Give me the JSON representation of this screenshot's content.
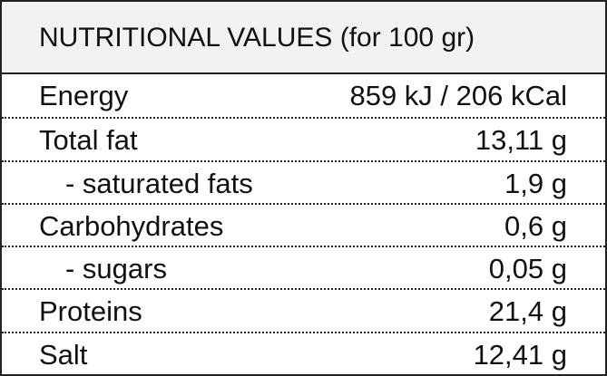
{
  "header": {
    "title": "NUTRITIONAL VALUES (for 100 gr)"
  },
  "table": {
    "rows": [
      [
        "Energy",
        "859 kJ / 206 kCal"
      ],
      [
        "Total fat",
        "13,11 g"
      ],
      [
        "- saturated fats",
        "1,9 g"
      ],
      [
        "Carbohydrates",
        "0,6 g"
      ],
      [
        "- sugars",
        "0,05 g"
      ],
      [
        "Proteins",
        "21,4 g"
      ],
      [
        "Salt",
        "12,41 g"
      ]
    ]
  }
}
